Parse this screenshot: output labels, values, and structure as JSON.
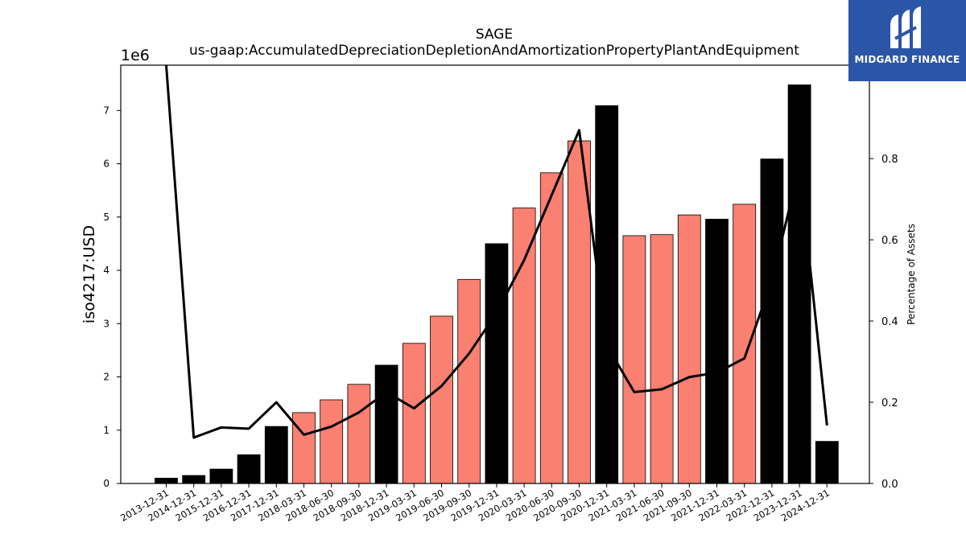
{
  "logo": {
    "text": "MIDGARD FINANCE",
    "background": "#2b55a6"
  },
  "chart_data": {
    "type": "bar",
    "title": "SAGE",
    "subtitle": "us-gaap:AccumulatedDepreciationDepletionAndAmortizationPropertyPlantAndEquipment",
    "ylabel": "iso4217:USD",
    "y_offset_label": "1e6",
    "y2label": "Percentage of Assets",
    "ylim": [
      0,
      7.85
    ],
    "y2lim": [
      0,
      1.03
    ],
    "yticks": [
      "0",
      "1",
      "2",
      "3",
      "4",
      "5",
      "6",
      "7"
    ],
    "y2ticks": [
      "0.0",
      "0.2",
      "0.4",
      "0.6",
      "0.8"
    ],
    "y_units_multiplier": 1000000,
    "colors": {
      "annual": "#000000",
      "quarterly": "#fa8072",
      "line": "#000000"
    },
    "categories": [
      "2013-12-31",
      "2014-12-31",
      "2015-12-31",
      "2016-12-31",
      "2017-12-31",
      "2018-03-31",
      "2018-06-30",
      "2018-09-30",
      "2018-12-31",
      "2019-03-31",
      "2019-06-30",
      "2019-09-30",
      "2019-12-31",
      "2020-03-31",
      "2020-06-30",
      "2020-09-30",
      "2020-12-31",
      "2021-03-31",
      "2021-06-30",
      "2021-09-30",
      "2021-12-31",
      "2022-03-31",
      "2022-12-31",
      "2023-12-31",
      "2024-12-31"
    ],
    "values": [
      0.1,
      0.15,
      0.27,
      0.54,
      1.07,
      1.33,
      1.57,
      1.86,
      2.22,
      2.63,
      3.14,
      3.83,
      4.5,
      5.17,
      5.83,
      6.43,
      7.09,
      4.65,
      4.67,
      5.04,
      4.96,
      5.24,
      6.09,
      7.48,
      0.79
    ],
    "period": [
      "annual",
      "annual",
      "annual",
      "annual",
      "annual",
      "quarterly",
      "quarterly",
      "quarterly",
      "annual",
      "quarterly",
      "quarterly",
      "quarterly",
      "annual",
      "quarterly",
      "quarterly",
      "quarterly",
      "annual",
      "quarterly",
      "quarterly",
      "quarterly",
      "annual",
      "quarterly",
      "annual",
      "annual",
      "annual"
    ],
    "line_series": {
      "axis": "right",
      "values": [
        1.03,
        0.113,
        0.138,
        0.135,
        0.2,
        0.12,
        0.14,
        0.175,
        0.225,
        0.185,
        0.24,
        0.32,
        0.42,
        0.55,
        0.71,
        0.87,
        0.34,
        0.225,
        0.232,
        0.262,
        0.273,
        0.308,
        0.5,
        0.78,
        0.143
      ]
    },
    "grid": false,
    "legend": "none"
  }
}
